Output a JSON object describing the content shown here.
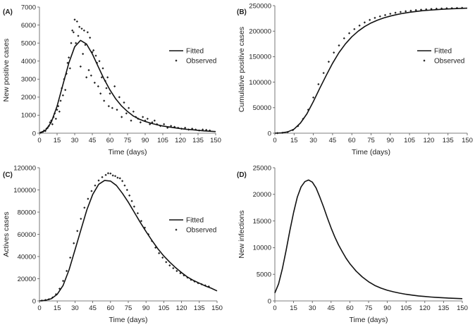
{
  "chart_data": [
    {
      "panel_label": "(A)",
      "type": "line+scatter",
      "xlabel": "Time (days)",
      "ylabel": "New positive cases",
      "xlim": [
        0,
        150
      ],
      "ylim": [
        0,
        7000
      ],
      "xticks": [
        "0",
        "15",
        "30",
        "45",
        "60",
        "75",
        "90",
        "105",
        "120",
        "135",
        "150"
      ],
      "yticks": [
        "0",
        "1000",
        "2000",
        "3000",
        "4000",
        "5000",
        "6000",
        "7000"
      ],
      "legend": {
        "position": "right",
        "fitted": "Fitted",
        "observed": "Observed"
      },
      "fitted": {
        "x": [
          0,
          5,
          10,
          15,
          20,
          25,
          30,
          35,
          40,
          45,
          50,
          55,
          60,
          65,
          70,
          75,
          80,
          85,
          90,
          95,
          100,
          105,
          110,
          115,
          120,
          125,
          130,
          135,
          140,
          145,
          150
        ],
        "y": [
          0,
          150,
          600,
          1500,
          2700,
          3900,
          4800,
          5150,
          4950,
          4400,
          3700,
          3000,
          2400,
          1900,
          1500,
          1200,
          950,
          780,
          650,
          550,
          470,
          400,
          350,
          300,
          260,
          220,
          190,
          160,
          130,
          110,
          90
        ]
      },
      "observed": {
        "x": [
          1,
          2,
          3,
          4,
          5,
          6,
          7,
          8,
          9,
          10,
          11,
          12,
          13,
          14,
          15,
          16,
          17,
          18,
          19,
          20,
          21,
          22,
          23,
          24,
          25,
          26,
          27,
          28,
          29,
          30,
          31,
          32,
          33,
          34,
          35,
          36,
          37,
          38,
          39,
          40,
          41,
          42,
          43,
          44,
          45,
          46,
          47,
          48,
          49,
          50,
          51,
          52,
          53,
          54,
          55,
          56,
          57,
          58,
          59,
          60,
          62,
          64,
          66,
          68,
          70,
          72,
          74,
          76,
          78,
          80,
          82,
          84,
          86,
          88,
          90,
          92,
          94,
          96,
          98,
          100,
          103,
          106,
          109,
          112,
          115,
          118,
          121,
          124,
          127,
          130,
          133,
          136,
          139,
          142,
          145
        ],
        "y": [
          30,
          60,
          80,
          150,
          120,
          250,
          300,
          400,
          600,
          700,
          500,
          900,
          1100,
          800,
          1300,
          1500,
          1200,
          1800,
          2500,
          2100,
          3000,
          2400,
          3300,
          3900,
          4200,
          3600,
          5000,
          5700,
          5600,
          6300,
          5000,
          6200,
          5400,
          5900,
          3700,
          5800,
          4400,
          5700,
          4900,
          3100,
          5600,
          3500,
          5300,
          3200,
          4500,
          4600,
          2800,
          4300,
          3900,
          2600,
          4000,
          2200,
          3100,
          3600,
          1800,
          2900,
          2500,
          3100,
          1500,
          2200,
          1400,
          2600,
          1300,
          2000,
          900,
          1700,
          1100,
          1400,
          700,
          1200,
          900,
          800,
          600,
          900,
          700,
          800,
          500,
          600,
          700,
          500,
          400,
          500,
          300,
          400,
          350,
          300,
          250,
          300,
          200,
          250,
          200,
          150,
          200,
          180,
          150
        ]
      }
    },
    {
      "panel_label": "(B)",
      "type": "line+scatter",
      "xlabel": "Time (days)",
      "ylabel": "Cumulative positive cases",
      "xlim": [
        0,
        150
      ],
      "ylim": [
        0,
        250000
      ],
      "xticks": [
        "0",
        "15",
        "30",
        "45",
        "60",
        "75",
        "90",
        "105",
        "120",
        "135",
        "150"
      ],
      "yticks": [
        "0",
        "50000",
        "100000",
        "150000",
        "200000",
        "250000"
      ],
      "legend": {
        "position": "right",
        "fitted": "Fitted",
        "observed": "Observed"
      },
      "fitted": {
        "x": [
          0,
          5,
          10,
          15,
          20,
          25,
          30,
          35,
          40,
          45,
          50,
          55,
          60,
          65,
          70,
          75,
          80,
          85,
          90,
          95,
          100,
          105,
          110,
          115,
          120,
          125,
          130,
          135,
          140,
          145,
          150
        ],
        "y": [
          0,
          500,
          2500,
          8000,
          20000,
          38000,
          62000,
          88000,
          113000,
          137000,
          158000,
          175000,
          189000,
          200000,
          209000,
          216000,
          221500,
          226000,
          229500,
          232500,
          235000,
          237000,
          238500,
          240000,
          241000,
          242000,
          242800,
          243500,
          244100,
          244600,
          245000
        ]
      },
      "observed": {
        "x": [
          2,
          6,
          10,
          14,
          18,
          22,
          26,
          30,
          34,
          38,
          42,
          46,
          50,
          54,
          58,
          62,
          66,
          70,
          74,
          78,
          82,
          86,
          90,
          94,
          98,
          102,
          106,
          110,
          114,
          118,
          122,
          126,
          130,
          134,
          138,
          142,
          146
        ],
        "y": [
          200,
          800,
          2200,
          6000,
          14000,
          28000,
          46000,
          70000,
          96000,
          118000,
          140000,
          158000,
          172000,
          186000,
          196000,
          204000,
          211000,
          217000,
          222000,
          226000,
          229000,
          231500,
          234000,
          236000,
          237500,
          239000,
          240000,
          241200,
          242000,
          242800,
          243400,
          244000,
          244400,
          244800,
          245100,
          245400,
          245700
        ]
      }
    },
    {
      "panel_label": "(C)",
      "type": "line+scatter",
      "xlabel": "Time (days)",
      "ylabel": "Actives cases",
      "xlim": [
        0,
        150
      ],
      "ylim": [
        0,
        120000
      ],
      "xticks": [
        "0",
        "15",
        "30",
        "45",
        "60",
        "75",
        "90",
        "105",
        "120",
        "135",
        "150"
      ],
      "yticks": [
        "0",
        "20000",
        "40000",
        "60000",
        "80000",
        "100000",
        "120000"
      ],
      "legend": {
        "position": "right",
        "fitted": "Fitted",
        "observed": "Observed"
      },
      "fitted": {
        "x": [
          0,
          5,
          10,
          15,
          20,
          25,
          30,
          35,
          40,
          45,
          50,
          55,
          60,
          65,
          70,
          75,
          80,
          85,
          90,
          95,
          100,
          105,
          110,
          115,
          120,
          125,
          130,
          135,
          140,
          145,
          150
        ],
        "y": [
          0,
          500,
          2000,
          6000,
          14000,
          28000,
          46000,
          64000,
          82000,
          96000,
          105000,
          108500,
          108000,
          104000,
          97000,
          89000,
          80000,
          71000,
          62500,
          54500,
          47000,
          40500,
          35000,
          30000,
          25500,
          21500,
          18500,
          16000,
          13500,
          11500,
          9000
        ]
      },
      "observed": {
        "x": [
          2,
          5,
          8,
          11,
          14,
          17,
          20,
          23,
          26,
          29,
          32,
          35,
          38,
          41,
          44,
          47,
          50,
          53,
          56,
          58,
          60,
          62,
          64,
          66,
          68,
          70,
          72,
          74,
          76,
          78,
          80,
          83,
          86,
          89,
          92,
          95,
          98,
          101,
          104,
          107,
          110,
          113,
          116,
          119,
          122,
          125,
          128,
          131,
          134,
          137,
          140,
          143
        ],
        "y": [
          300,
          800,
          1500,
          3000,
          6000,
          11000,
          18000,
          27000,
          39000,
          52000,
          63000,
          74000,
          84000,
          92000,
          99000,
          104000,
          108500,
          111500,
          113500,
          115000,
          114800,
          113000,
          112500,
          111000,
          110500,
          108000,
          104000,
          100000,
          95000,
          90000,
          85000,
          79000,
          72000,
          66000,
          60000,
          54000,
          48000,
          43000,
          39000,
          35000,
          32000,
          29500,
          27000,
          25000,
          23000,
          21000,
          19000,
          17500,
          16000,
          15000,
          14000,
          13000
        ]
      }
    },
    {
      "panel_label": "(D)",
      "type": "line",
      "xlabel": "Time (days)",
      "ylabel": "New infections",
      "xlim": [
        0,
        150
      ],
      "ylim": [
        0,
        25000
      ],
      "xticks": [
        "0",
        "15",
        "30",
        "45",
        "60",
        "75",
        "90",
        "105",
        "120",
        "135",
        "150"
      ],
      "yticks": [
        "0",
        "5000",
        "10000",
        "15000",
        "20000",
        "25000"
      ],
      "fitted": {
        "x": [
          0,
          3,
          6,
          9,
          12,
          15,
          18,
          21,
          24,
          27,
          30,
          33,
          36,
          39,
          42,
          45,
          48,
          51,
          54,
          57,
          60,
          65,
          70,
          75,
          80,
          85,
          90,
          95,
          100,
          105,
          110,
          115,
          120,
          125,
          130,
          135,
          140,
          145,
          150
        ],
        "y": [
          1500,
          3200,
          6000,
          9500,
          13200,
          16600,
          19500,
          21400,
          22400,
          22700,
          22300,
          21200,
          19500,
          17600,
          15600,
          13700,
          12000,
          10500,
          9200,
          8000,
          7000,
          5600,
          4500,
          3600,
          2900,
          2400,
          2000,
          1700,
          1450,
          1250,
          1080,
          940,
          830,
          730,
          650,
          580,
          520,
          470,
          420
        ]
      }
    }
  ]
}
